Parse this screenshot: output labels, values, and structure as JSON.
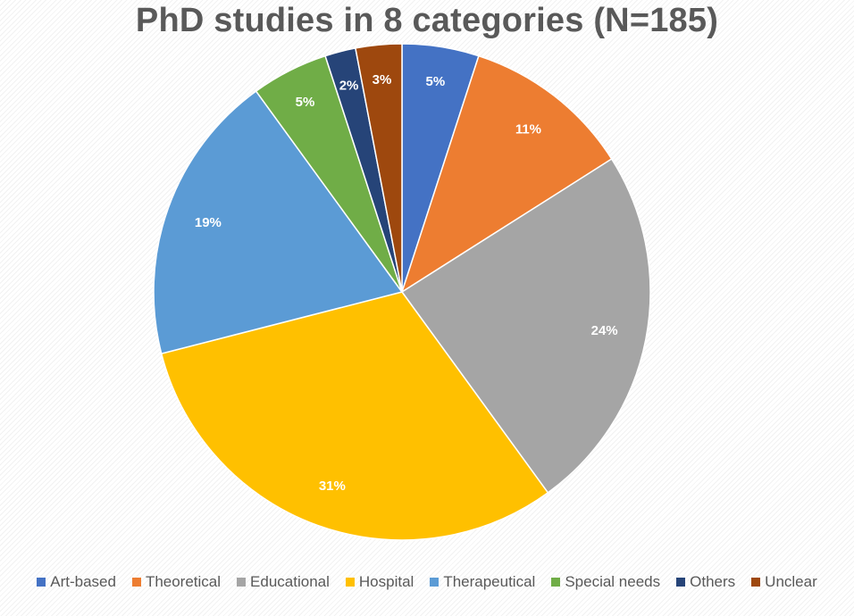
{
  "chart_data": {
    "type": "pie",
    "title": "PhD studies in 8 categories (N=185)",
    "categories": [
      "Art-based",
      "Theoretical",
      "Educational",
      "Hospital",
      "Therapeutical",
      "Special needs",
      "Others",
      "Unclear"
    ],
    "values": [
      5,
      11,
      24,
      31,
      19,
      5,
      2,
      3
    ],
    "labels": [
      "5%",
      "11%",
      "24%",
      "31%",
      "19%",
      "5%",
      "2%",
      "3%"
    ],
    "colors": [
      "#4472C4",
      "#ED7D31",
      "#A5A5A5",
      "#FFC000",
      "#5B9BD5",
      "#70AD47",
      "#264478",
      "#9E480E"
    ],
    "legend_position": "bottom"
  }
}
